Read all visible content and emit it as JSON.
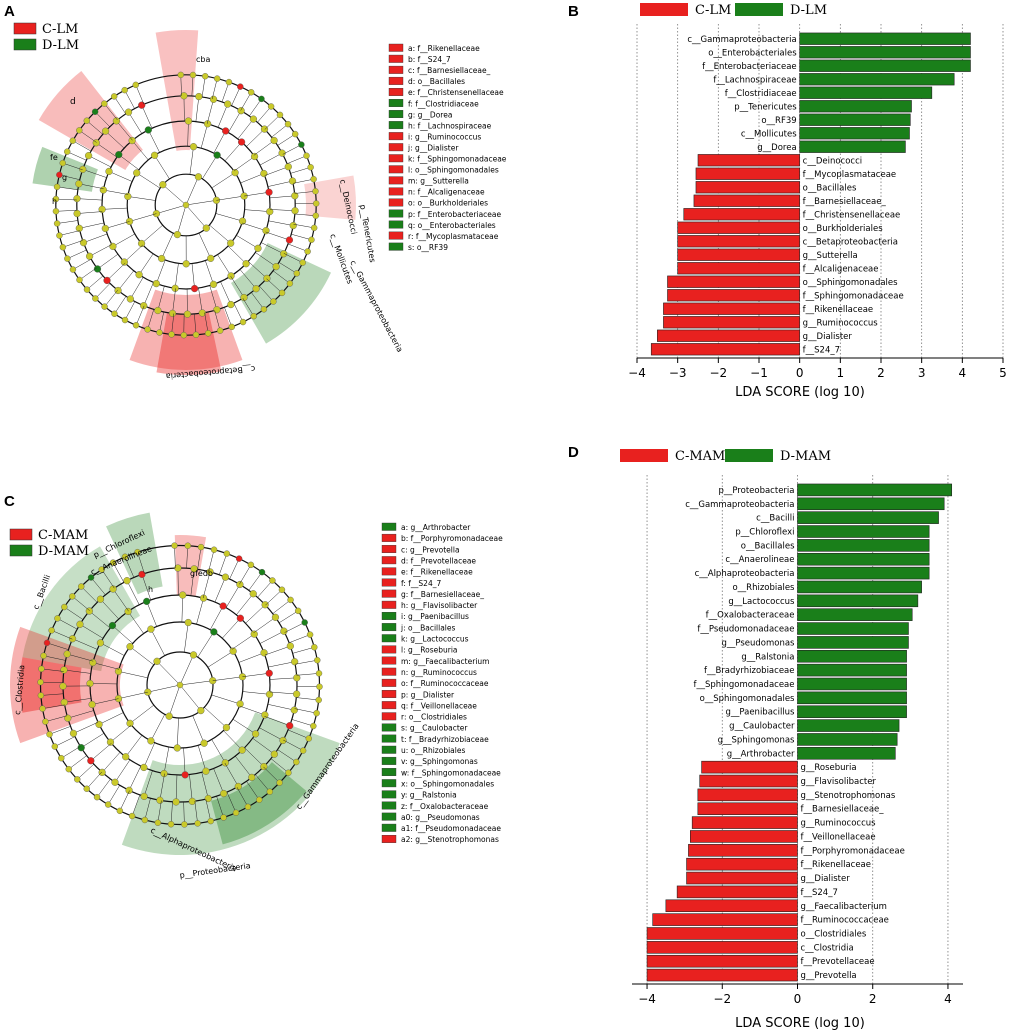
{
  "panels": {
    "A": {
      "letter": "A",
      "legend": [
        {
          "name": "C-LM",
          "color": "#e8211f"
        },
        {
          "name": "D-LM",
          "color": "#1a7f1a"
        }
      ],
      "keys": [
        {
          "k": "a: f__Rikenellaceae",
          "g": "C"
        },
        {
          "k": "b: f__S24_7",
          "g": "C"
        },
        {
          "k": "c: f__Barnesiellaceae_",
          "g": "C"
        },
        {
          "k": "d: o__Bacillales",
          "g": "C"
        },
        {
          "k": "e: f__Christensenellaceae",
          "g": "C"
        },
        {
          "k": "f: f__Clostridiaceae",
          "g": "D"
        },
        {
          "k": "g: g__Dorea",
          "g": "D"
        },
        {
          "k": "h: f__Lachnospiraceae",
          "g": "D"
        },
        {
          "k": "i: g__Ruminococcus",
          "g": "C"
        },
        {
          "k": "j: g__Dialister",
          "g": "C"
        },
        {
          "k": "k: f__Sphingomonadaceae",
          "g": "C"
        },
        {
          "k": "l: o__Sphingomonadales",
          "g": "C"
        },
        {
          "k": "m: g__Sutterella",
          "g": "C"
        },
        {
          "k": "n: f__Alcaligenaceae",
          "g": "C"
        },
        {
          "k": "o: o__Burkholderiales",
          "g": "C"
        },
        {
          "k": "p: f__Enterobacteriaceae",
          "g": "D"
        },
        {
          "k": "q: o__Enterobacteriales",
          "g": "D"
        },
        {
          "k": "r: f__Mycoplasmataceae",
          "g": "C"
        },
        {
          "k": "s: o__RF39",
          "g": "D"
        }
      ],
      "labels": [
        {
          "t": "cba"
        },
        {
          "t": "d"
        },
        {
          "t": "fe"
        },
        {
          "t": "g"
        },
        {
          "t": "h"
        },
        {
          "t": "c__Deinococci"
        },
        {
          "t": "p__Tenericutes"
        },
        {
          "t": "c__Mollicutes"
        },
        {
          "t": "c__Gammaproteobacteria"
        },
        {
          "t": "c__Betaproteobacteria"
        }
      ]
    },
    "C": {
      "letter": "C",
      "legend": [
        {
          "name": "C-MAM",
          "color": "#e8211f"
        },
        {
          "name": "D-MAM",
          "color": "#1a7f1a"
        }
      ],
      "keys": [
        {
          "k": "a: g__Arthrobacter",
          "g": "D"
        },
        {
          "k": "b: f__Porphyromonadaceae",
          "g": "C"
        },
        {
          "k": "c: g__Prevotella",
          "g": "C"
        },
        {
          "k": "d: f__Prevotellaceae",
          "g": "C"
        },
        {
          "k": "e: f__Rikenellaceae",
          "g": "C"
        },
        {
          "k": "f: f__S24_7",
          "g": "C"
        },
        {
          "k": "g: f__Barnesiellaceae_",
          "g": "C"
        },
        {
          "k": "h: g__Flavisolibacter",
          "g": "C"
        },
        {
          "k": "i: g__Paenibacillus",
          "g": "D"
        },
        {
          "k": "j: o__Bacillales",
          "g": "D"
        },
        {
          "k": "k: g__Lactococcus",
          "g": "D"
        },
        {
          "k": "l: g__Roseburia",
          "g": "C"
        },
        {
          "k": "m: g__Faecalibacterium",
          "g": "C"
        },
        {
          "k": "n: g__Ruminococcus",
          "g": "C"
        },
        {
          "k": "o: f__Ruminococcaceae",
          "g": "C"
        },
        {
          "k": "p: g__Dialister",
          "g": "C"
        },
        {
          "k": "q: f__Veillonellaceae",
          "g": "C"
        },
        {
          "k": "r: o__Clostridiales",
          "g": "C"
        },
        {
          "k": "s: g__Caulobacter",
          "g": "D"
        },
        {
          "k": "t: f__Bradyrhizobiaceae",
          "g": "D"
        },
        {
          "k": "u: o__Rhizobiales",
          "g": "D"
        },
        {
          "k": "v: g__Sphingomonas",
          "g": "D"
        },
        {
          "k": "w: f__Sphingomonadaceae",
          "g": "D"
        },
        {
          "k": "x: o__Sphingomonadales",
          "g": "D"
        },
        {
          "k": "y: g__Ralstonia",
          "g": "D"
        },
        {
          "k": "z: f__Oxalobacteraceae",
          "g": "D"
        },
        {
          "k": "a0: g__Pseudomonas",
          "g": "D"
        },
        {
          "k": "a1: f__Pseudomonadaceae",
          "g": "D"
        },
        {
          "k": "a2: g__Stenotrophomonas",
          "g": "C"
        }
      ],
      "labels": [
        {
          "t": "p__Chloroflexi"
        },
        {
          "t": "c__Anaerolineae"
        },
        {
          "t": "c__Bacilli"
        },
        {
          "t": "c__Clostridia"
        },
        {
          "t": "gfedb"
        },
        {
          "t": "h"
        },
        {
          "t": "c__Gammaproteobacteria"
        },
        {
          "t": "c__Alphaproteobacteria"
        },
        {
          "t": "p__Proteobacteria"
        }
      ]
    }
  },
  "chart_data": [
    {
      "type": "bar",
      "letter": "B",
      "orientation": "horizontal",
      "title": "",
      "xlabel": "LDA SCORE (log 10)",
      "ylabel": "",
      "xlim": [
        -4,
        5
      ],
      "xticks": [
        "−4",
        "−3",
        "−2",
        "−1",
        "0",
        "1",
        "2",
        "3",
        "4",
        "5"
      ],
      "legend": [
        {
          "name": "C-LM",
          "color": "#e8211f"
        },
        {
          "name": "D-LM",
          "color": "#1a7f1a"
        }
      ],
      "categories": [
        "c__Gammaproteobacteria",
        "o__Enterobacteriales",
        "f__Enterobacteriaceae",
        "f__Lachnospiraceae",
        "f__Clostridiaceae",
        "p__Tenericutes",
        "o__RF39",
        "c__Mollicutes",
        "g__Dorea",
        "c__Deinococci",
        "f__Mycoplasmataceae",
        "o__Bacillales",
        "f__Barnesiellaceae_",
        "f__Christensenellaceae",
        "o__Burkholderiales",
        "c__Betaproteobacteria",
        "g__Sutterella",
        "f__Alcaligenaceae",
        "o__Sphingomonadales",
        "f__Sphingomonadaceae",
        "f__Rikenellaceae",
        "g__Ruminococcus",
        "g__Dialister",
        "f__S24_7"
      ],
      "values": [
        4.2,
        4.2,
        4.2,
        3.8,
        3.25,
        2.75,
        2.72,
        2.7,
        2.6,
        -2.5,
        -2.55,
        -2.55,
        -2.6,
        -2.85,
        -3.0,
        -3.0,
        -3.0,
        -3.0,
        -3.25,
        -3.25,
        -3.35,
        -3.35,
        -3.5,
        -3.65
      ],
      "groups": [
        "D",
        "D",
        "D",
        "D",
        "D",
        "D",
        "D",
        "D",
        "D",
        "C",
        "C",
        "C",
        "C",
        "C",
        "C",
        "C",
        "C",
        "C",
        "C",
        "C",
        "C",
        "C",
        "C",
        "C"
      ]
    },
    {
      "type": "bar",
      "letter": "D",
      "orientation": "horizontal",
      "title": "",
      "xlabel": "LDA SCORE (log 10)",
      "ylabel": "",
      "xlim": [
        -4.4,
        4.4
      ],
      "xticks": [
        "−4",
        "−2",
        "0",
        "2",
        "4"
      ],
      "legend": [
        {
          "name": "C-MAM",
          "color": "#e8211f"
        },
        {
          "name": "D-MAM",
          "color": "#1a7f1a"
        }
      ],
      "categories": [
        "p__Proteobacteria",
        "c__Gammaproteobacteria",
        "c__Bacilli",
        "p__Chloroflexi",
        "o__Bacillales",
        "c__Anaerolineae",
        "c__Alphaproteobacteria",
        "o__Rhizobiales",
        "g__Lactococcus",
        "f__Oxalobacteraceae",
        "f__Pseudomonadaceae",
        "g__Pseudomonas",
        "g__Ralstonia",
        "f__Bradyrhizobiaceae",
        "f__Sphingomonadaceae",
        "o__Sphingomonadales",
        "g__Paenibacillus",
        "g__Caulobacter",
        "g__Sphingomonas",
        "g__Arthrobacter",
        "g__Roseburia",
        "g__Flavisolibacter",
        "g__Stenotrophomonas",
        "f__Barnesiellaceae_",
        "g__Ruminococcus",
        "f__Veillonellaceae",
        "f__Porphyromonadaceae",
        "f__Rikenellaceae",
        "g__Dialister",
        "f__S24_7",
        "g__Faecalibacterium",
        "f__Ruminococcaceae",
        "o__Clostridiales",
        "c__Clostridia",
        "f__Prevotellaceae",
        "g__Prevotella"
      ],
      "values": [
        4.1,
        3.9,
        3.75,
        3.5,
        3.5,
        3.5,
        3.5,
        3.3,
        3.2,
        3.05,
        2.95,
        2.95,
        2.9,
        2.9,
        2.9,
        2.9,
        2.9,
        2.7,
        2.65,
        2.6,
        -2.55,
        -2.6,
        -2.65,
        -2.65,
        -2.8,
        -2.85,
        -2.9,
        -2.95,
        -2.95,
        -3.2,
        -3.5,
        -3.85,
        -4.0,
        -4.0,
        -4.0,
        -4.0
      ],
      "groups": [
        "D",
        "D",
        "D",
        "D",
        "D",
        "D",
        "D",
        "D",
        "D",
        "D",
        "D",
        "D",
        "D",
        "D",
        "D",
        "D",
        "D",
        "D",
        "D",
        "D",
        "C",
        "C",
        "C",
        "C",
        "C",
        "C",
        "C",
        "C",
        "C",
        "C",
        "C",
        "C",
        "C",
        "C",
        "C",
        "C"
      ]
    }
  ]
}
